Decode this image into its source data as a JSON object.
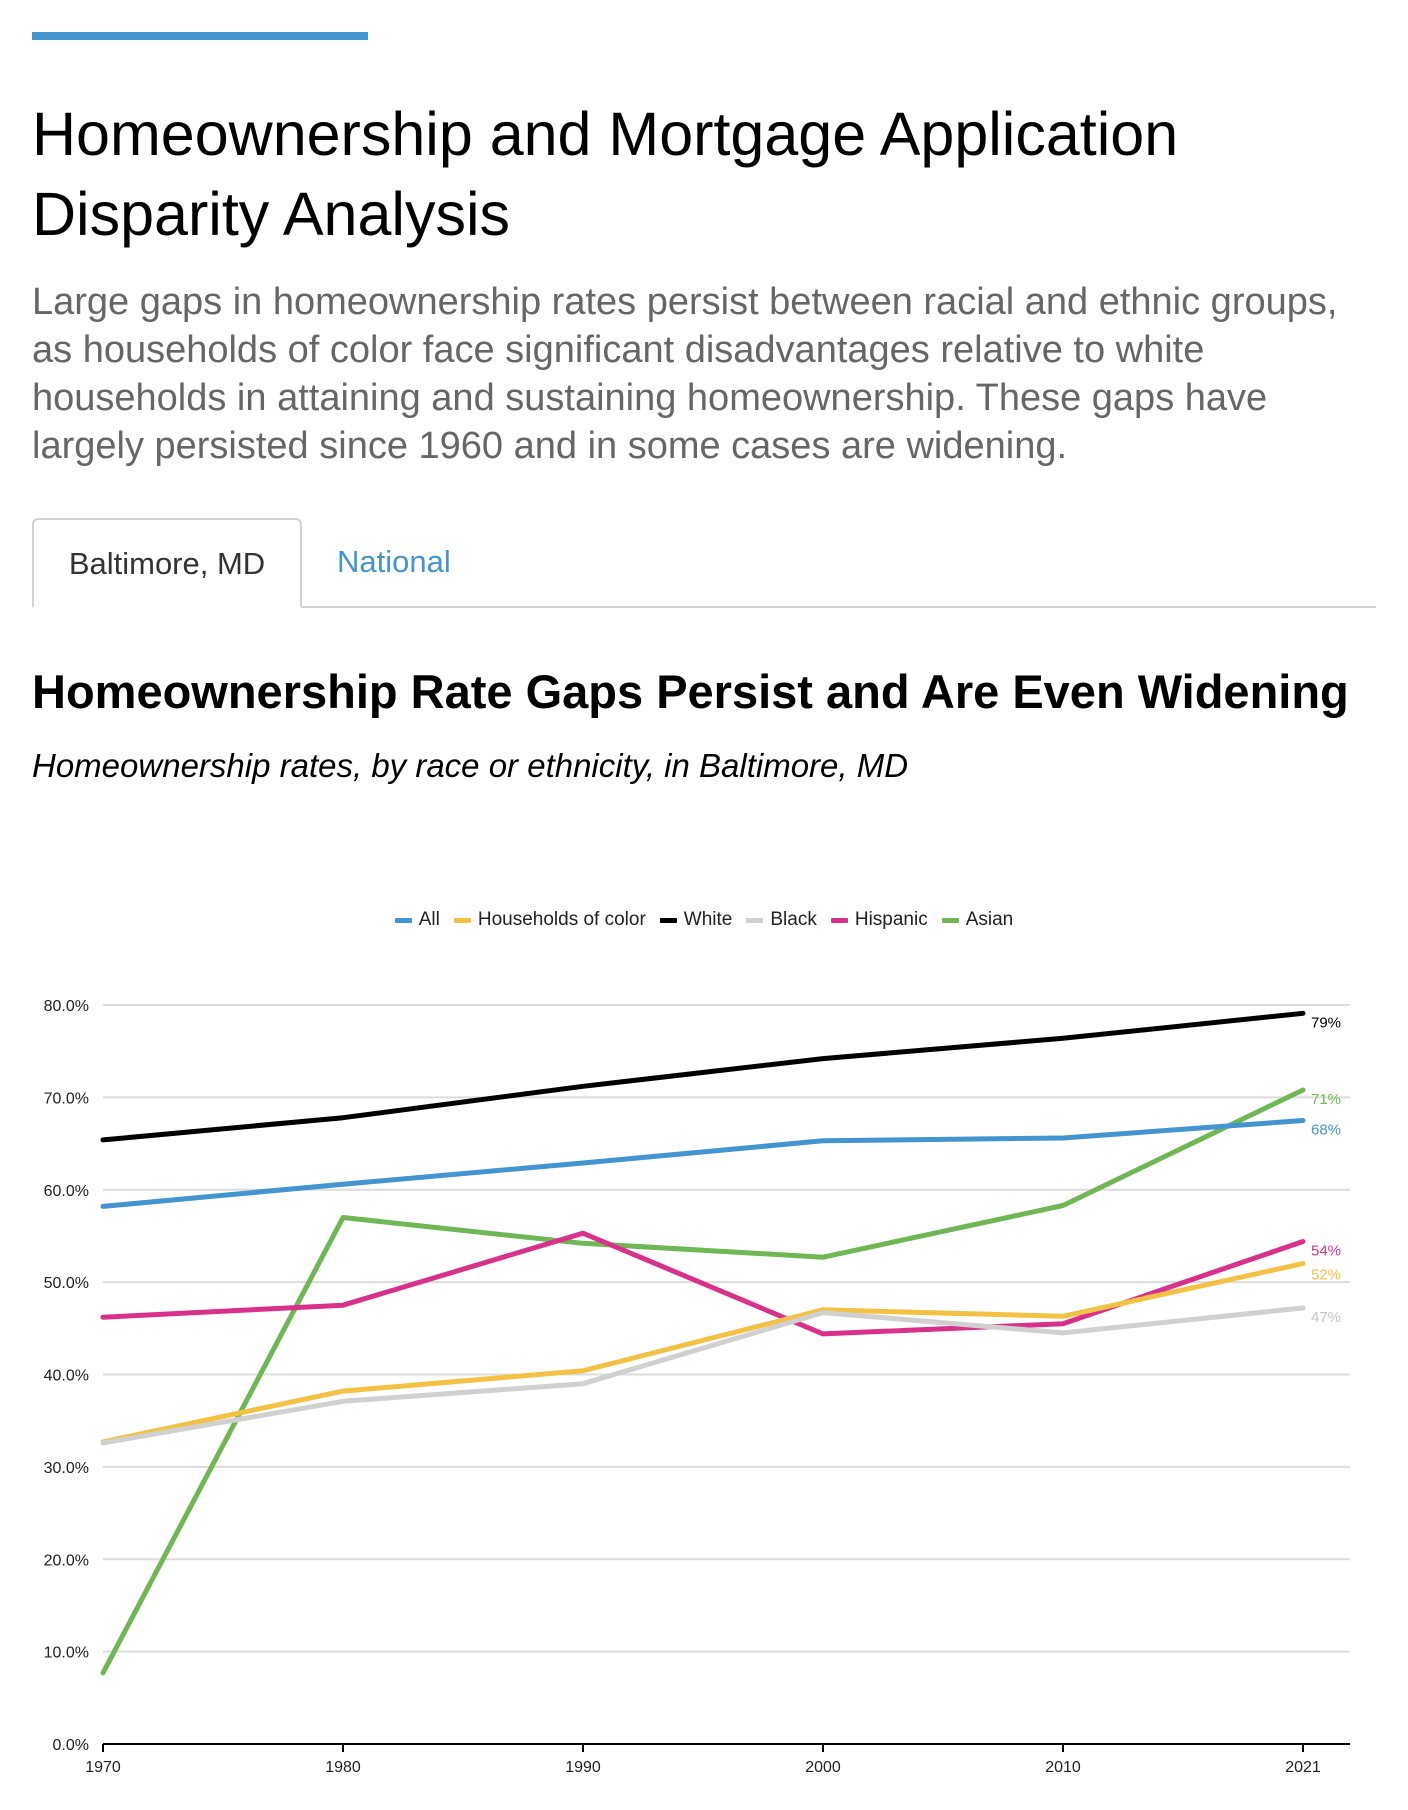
{
  "header": {
    "title": "Homeownership and Mortgage Application Disparity Analysis",
    "intro": "Large gaps in homeownership rates persist between racial and ethnic groups, as households of color face significant disadvantages relative to white households in attaining and sustaining homeownership. These gaps have largely persisted since 1960 and in some cases are widening.",
    "accent_color": "#4494d0"
  },
  "tabs": [
    {
      "label": "Baltimore, MD",
      "active": true
    },
    {
      "label": "National",
      "active": false
    }
  ],
  "chart_heading": {
    "title": "Homeownership Rate Gaps Persist and Are Even Widening",
    "subtitle": "Homeownership rates, by race or ethnicity, in Baltimore, MD"
  },
  "legend": [
    {
      "label": "All",
      "color": "#4494d0"
    },
    {
      "label": "Households of color",
      "color": "#f3c244"
    },
    {
      "label": "White",
      "color": "#000000"
    },
    {
      "label": "Black",
      "color": "#d0d0d0"
    },
    {
      "label": "Hispanic",
      "color": "#d9318b"
    },
    {
      "label": "Asian",
      "color": "#6fb755"
    }
  ],
  "chart_data": {
    "type": "line",
    "x": [
      "1970",
      "1980",
      "1990",
      "2000",
      "2010",
      "2021"
    ],
    "ylim": [
      0,
      80
    ],
    "y_ticks": [
      "0.0%",
      "10.0%",
      "20.0%",
      "30.0%",
      "40.0%",
      "50.0%",
      "60.0%",
      "70.0%",
      "80.0%"
    ],
    "grid": true,
    "legend_position": "top-center",
    "series": [
      {
        "name": "White",
        "color": "#000000",
        "values": [
          65.4,
          67.8,
          71.2,
          74.2,
          76.4,
          79.1
        ],
        "end_label": "79%"
      },
      {
        "name": "Asian",
        "color": "#6fb755",
        "values": [
          7.7,
          57.0,
          54.2,
          52.7,
          58.3,
          70.8
        ],
        "end_label": "71%"
      },
      {
        "name": "All",
        "color": "#4494d0",
        "values": [
          58.2,
          60.6,
          62.9,
          65.3,
          65.6,
          67.5
        ],
        "end_label": "68%"
      },
      {
        "name": "Hispanic",
        "color": "#d9318b",
        "values": [
          46.2,
          47.5,
          55.3,
          44.4,
          45.5,
          54.4
        ],
        "end_label": "54%"
      },
      {
        "name": "Households of color",
        "color": "#f3c244",
        "values": [
          32.7,
          38.2,
          40.4,
          47.0,
          46.3,
          52.0
        ],
        "end_label": "52%"
      },
      {
        "name": "Black",
        "color": "#d0d0d0",
        "values": [
          32.6,
          37.1,
          39.0,
          46.7,
          44.5,
          47.2
        ],
        "end_label": "47%"
      }
    ]
  }
}
